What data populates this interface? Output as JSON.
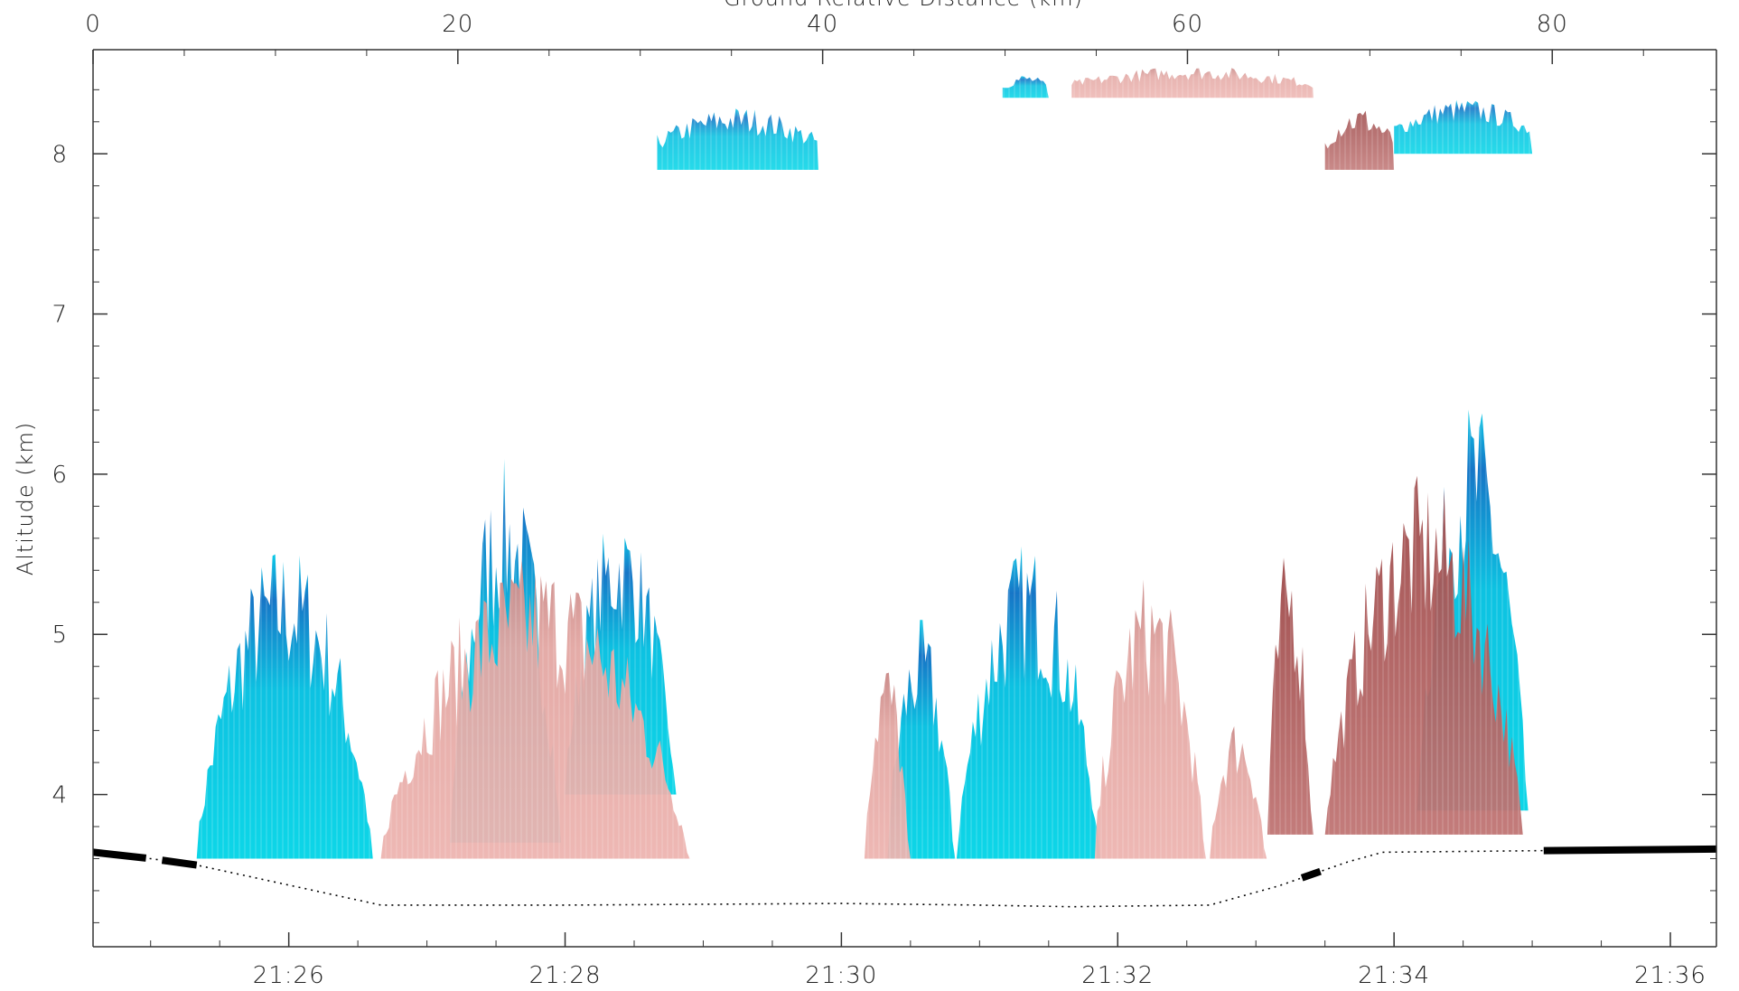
{
  "chart_data": {
    "type": "heatmap",
    "title": "",
    "xlabel": "",
    "x2label": "Ground Relative Distance (km)",
    "ylabel": "Altitude (km)",
    "grid": false,
    "legend": "none",
    "x_time_range": [
      "21:24:35",
      "21:36:20"
    ],
    "x_time_ticks": [
      "21:26",
      "21:28",
      "21:30",
      "21:32",
      "21:34",
      "21:36"
    ],
    "x2_range": [
      0,
      89
    ],
    "x2_ticks": [
      0,
      20,
      40,
      60,
      80
    ],
    "ylim": [
      3.05,
      8.65
    ],
    "yticks": [
      4,
      5,
      6,
      7,
      8
    ],
    "colors": {
      "positive": "#00c8e0",
      "positive_strong": "#0a5fb8",
      "negative": "#e8aaa6",
      "negative_strong": "#9e4a4a",
      "ground_line": "#000000"
    },
    "ground_altitude_km": [
      {
        "time": "21:24:35",
        "alt": 3.64
      },
      {
        "time": "21:25:00",
        "alt": 3.6
      },
      {
        "time": "21:25:20",
        "alt": 3.56
      },
      {
        "time": "21:26:40",
        "alt": 3.31
      },
      {
        "time": "21:28:00",
        "alt": 3.31
      },
      {
        "time": "21:30:00",
        "alt": 3.32
      },
      {
        "time": "21:31:00",
        "alt": 3.31
      },
      {
        "time": "21:31:40",
        "alt": 3.3
      },
      {
        "time": "21:32:40",
        "alt": 3.31
      },
      {
        "time": "21:33:10",
        "alt": 3.43
      },
      {
        "time": "21:33:40",
        "alt": 3.58
      },
      {
        "time": "21:33:55",
        "alt": 3.64
      },
      {
        "time": "21:35:05",
        "alt": 3.65
      },
      {
        "time": "21:36:20",
        "alt": 3.66
      }
    ],
    "series": [
      {
        "color": "positive",
        "regions": [
          {
            "start": "21:25:20",
            "end": "21:26:40",
            "base": 3.6,
            "top": 5.6
          },
          {
            "start": "21:27:10",
            "end": "21:28:00",
            "base": 3.7,
            "top": 6.1
          },
          {
            "start": "21:28:00",
            "end": "21:28:50",
            "base": 4.0,
            "top": 5.8
          },
          {
            "start": "21:30:20",
            "end": "21:30:50",
            "base": 3.6,
            "top": 5.1
          },
          {
            "start": "21:30:50",
            "end": "21:31:55",
            "base": 3.6,
            "top": 5.6
          },
          {
            "start": "21:34:10",
            "end": "21:35:00",
            "base": 3.9,
            "top": 6.5
          },
          {
            "start": "21:28:40",
            "end": "21:29:50",
            "base": 7.9,
            "top": 8.3
          },
          {
            "start": "21:34:00",
            "end": "21:35:00",
            "base": 8.0,
            "top": 8.35
          },
          {
            "start": "21:31:10",
            "end": "21:31:30",
            "base": 8.35,
            "top": 8.5
          }
        ]
      },
      {
        "color": "negative",
        "regions": [
          {
            "start": "21:26:40",
            "end": "21:29:00",
            "base": 3.6,
            "top": 5.5
          },
          {
            "start": "21:30:10",
            "end": "21:30:30",
            "base": 3.6,
            "top": 4.9
          },
          {
            "start": "21:31:50",
            "end": "21:32:40",
            "base": 3.6,
            "top": 5.4
          },
          {
            "start": "21:32:40",
            "end": "21:33:05",
            "base": 3.6,
            "top": 4.5
          },
          {
            "start": "21:33:05",
            "end": "21:33:25",
            "base": 3.75,
            "top": 5.6
          },
          {
            "start": "21:33:30",
            "end": "21:35:00",
            "base": 3.75,
            "top": 6.0
          },
          {
            "start": "21:33:30",
            "end": "21:34:00",
            "base": 7.9,
            "top": 8.3
          },
          {
            "start": "21:31:40",
            "end": "21:33:25",
            "base": 8.35,
            "top": 8.55
          }
        ]
      }
    ]
  }
}
